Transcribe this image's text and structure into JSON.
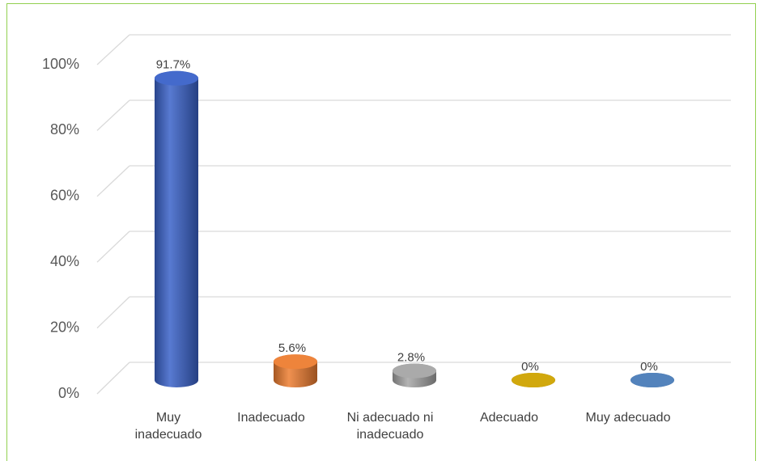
{
  "chart_data": {
    "type": "bar",
    "categories": [
      "Muy inadecuado",
      "Inadecuado",
      "Ni adecuado ni inadecuado",
      "Adecuado",
      "Muy adecuado"
    ],
    "values": [
      91.7,
      5.6,
      2.8,
      0,
      0
    ],
    "value_labels": [
      "91.7%",
      "5.6%",
      "2.8%",
      "0%",
      "0%"
    ],
    "colors": [
      "#3a62c9",
      "#ed7d31",
      "#a5a5a5",
      "#cfa300",
      "#4a7cb8"
    ],
    "ylim": [
      0,
      100
    ],
    "yticks": [
      {
        "value": 0,
        "label": "0%"
      },
      {
        "value": 20,
        "label": "20%"
      },
      {
        "value": 40,
        "label": "40%"
      },
      {
        "value": 60,
        "label": "60%"
      },
      {
        "value": 80,
        "label": "80%"
      },
      {
        "value": 100,
        "label": "100%"
      }
    ],
    "grid": true
  }
}
